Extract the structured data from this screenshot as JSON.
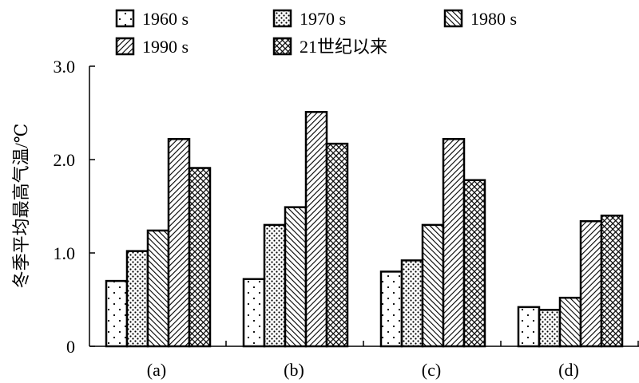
{
  "chart_data": {
    "type": "bar",
    "categories": [
      "(a)",
      "(b)",
      "(c)",
      "(d)"
    ],
    "series": [
      {
        "name": "1960 s",
        "pattern": "sparse-dots",
        "values": [
          0.7,
          0.72,
          0.8,
          0.42
        ]
      },
      {
        "name": "1970 s",
        "pattern": "dense-dots",
        "values": [
          1.02,
          1.3,
          0.92,
          0.39
        ]
      },
      {
        "name": "1980 s",
        "pattern": "back-hatch",
        "values": [
          1.24,
          1.49,
          1.3,
          0.52
        ]
      },
      {
        "name": "1990 s",
        "pattern": "forward-hatch",
        "values": [
          2.22,
          2.51,
          2.22,
          1.34
        ]
      },
      {
        "name": "21世纪以来",
        "pattern": "cross-hatch",
        "values": [
          1.91,
          2.17,
          1.78,
          1.4
        ]
      }
    ],
    "ylabel": "冬季平均最高气温/℃",
    "ylim": [
      0,
      3.0
    ],
    "yticks": [
      {
        "value": 0,
        "label": "0"
      },
      {
        "value": 1.0,
        "label": "1.0"
      },
      {
        "value": 2.0,
        "label": "2.0"
      },
      {
        "value": 3.0,
        "label": "3.0"
      }
    ],
    "grid": false,
    "legend_position": "top"
  }
}
